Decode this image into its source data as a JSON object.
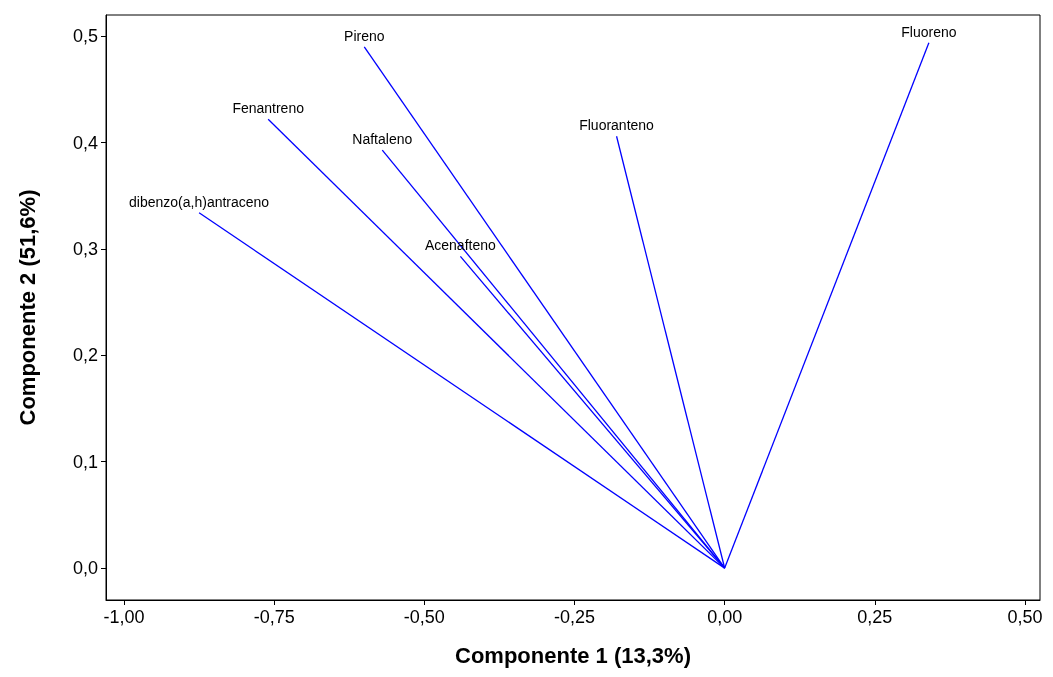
{
  "chart_data": {
    "type": "line",
    "xlabel": "Componente 1 (13,3%)",
    "ylabel": "Componente 2 (51,6%)",
    "xlim": [
      -1.03,
      0.525
    ],
    "ylim": [
      -0.03,
      0.52
    ],
    "xticks": [
      {
        "value": -1,
        "label": "-1,00"
      },
      {
        "value": -0.75,
        "label": "-0,75"
      },
      {
        "value": -0.5,
        "label": "-0,50"
      },
      {
        "value": -0.25,
        "label": "-0,25"
      },
      {
        "value": 0,
        "label": "0,00"
      },
      {
        "value": 0.25,
        "label": "0,25"
      },
      {
        "value": 0.5,
        "label": "0,50"
      }
    ],
    "yticks": [
      {
        "value": 0,
        "label": "0,0"
      },
      {
        "value": 0.1,
        "label": "0,1"
      },
      {
        "value": 0.2,
        "label": "0,2"
      },
      {
        "value": 0.3,
        "label": "0,3"
      },
      {
        "value": 0.4,
        "label": "0,4"
      },
      {
        "value": 0.5,
        "label": "0,5"
      }
    ],
    "grid": false,
    "legend": false,
    "series": [
      {
        "name": "Pireno",
        "color": "#0000ff",
        "x": [
          0,
          -0.6
        ],
        "values": [
          0,
          0.49
        ]
      },
      {
        "name": "Fluoreno",
        "color": "#0000ff",
        "x": [
          0,
          0.34
        ],
        "values": [
          0,
          0.494
        ]
      },
      {
        "name": "Fenantreno",
        "color": "#0000ff",
        "x": [
          0,
          -0.76
        ],
        "values": [
          0,
          0.422
        ]
      },
      {
        "name": "Naftaleno",
        "color": "#0000ff",
        "x": [
          0,
          -0.57
        ],
        "values": [
          0,
          0.393
        ]
      },
      {
        "name": "Fluoranteno",
        "color": "#0000ff",
        "x": [
          0,
          -0.18
        ],
        "values": [
          0,
          0.406
        ]
      },
      {
        "name": "dibenzo(a,h)antraceno",
        "color": "#0000ff",
        "x": [
          0,
          -0.875
        ],
        "values": [
          0,
          0.334
        ]
      },
      {
        "name": "Acenafteno",
        "color": "#0000ff",
        "x": [
          0,
          -0.44
        ],
        "values": [
          0,
          0.293
        ]
      }
    ]
  }
}
